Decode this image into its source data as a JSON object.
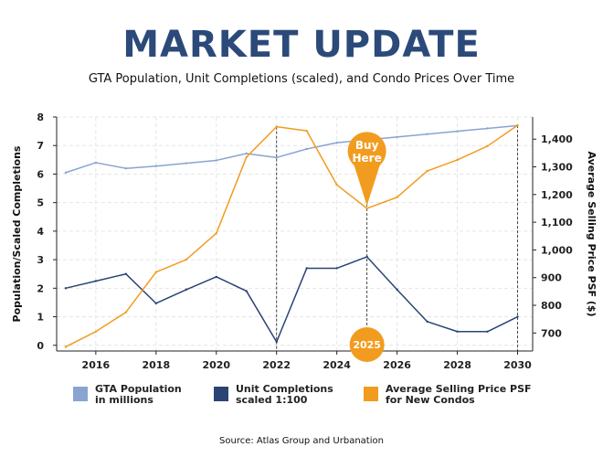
{
  "header": {
    "title": "MARKET UPDATE",
    "subtitle": "GTA Population, Unit Completions (scaled), and Condo Prices Over Time"
  },
  "source": "Source: Atlas Group and Urbanation",
  "colors": {
    "population": "#8aa4d1",
    "completions": "#2b4474",
    "price": "#f29c1f",
    "title": "#2b4a7a",
    "grid": "#e5e5e5",
    "annotation": "#333333"
  },
  "legend": [
    {
      "key": "population",
      "line1": "GTA Population",
      "line2": "in millions"
    },
    {
      "key": "completions",
      "line1": "Unit Completions",
      "line2": "scaled 1:100"
    },
    {
      "key": "price",
      "line1": "Average Selling Price PSF",
      "line2": "for New Condos"
    }
  ],
  "chart_data": {
    "type": "line",
    "x": [
      2015,
      2016,
      2017,
      2018,
      2019,
      2020,
      2021,
      2022,
      2023,
      2024,
      2025,
      2026,
      2027,
      2028,
      2029,
      2030
    ],
    "xlim": [
      2014.7,
      2030.5
    ],
    "xticks": [
      2016,
      2018,
      2020,
      2022,
      2024,
      2026,
      2028,
      2030
    ],
    "ylabel": "Population/Scaled Completions",
    "ylim": [
      -0.2,
      8
    ],
    "yticks": [
      0,
      1,
      2,
      3,
      4,
      5,
      6,
      7,
      8
    ],
    "y2label": "Average Selling Price PSF ($)",
    "y2lim": [
      635,
      1480
    ],
    "y2ticks": [
      700,
      800,
      900,
      1000,
      1100,
      1200,
      1300,
      1400
    ],
    "y2ticklabels": [
      "700",
      "800",
      "900",
      "1,000",
      "1,100",
      "1,200",
      "1,300",
      "1,400"
    ],
    "grid": true,
    "legend": "bottom",
    "series": [
      {
        "key": "population",
        "axis": "left",
        "values": [
          6.05,
          6.4,
          6.2,
          6.28,
          6.38,
          6.48,
          6.72,
          6.58,
          6.88,
          7.1,
          7.2,
          7.3,
          7.4,
          7.5,
          7.6,
          7.7
        ]
      },
      {
        "key": "completions",
        "axis": "left",
        "values": [
          2.0,
          2.25,
          2.5,
          1.47,
          1.95,
          2.4,
          1.9,
          0.12,
          2.7,
          2.7,
          3.1,
          1.95,
          0.83,
          0.48,
          0.48,
          1.0
        ]
      },
      {
        "key": "price",
        "axis": "right",
        "values": [
          650,
          705,
          775,
          920,
          965,
          1060,
          1335,
          1445,
          1430,
          1235,
          1150,
          1190,
          1285,
          1325,
          1375,
          1450
        ]
      }
    ],
    "vlines": [
      2022,
      2025,
      2030
    ],
    "annotations": [
      {
        "label_line1": "Buy",
        "label_line2": "Here",
        "x": 2025,
        "y2": 1150,
        "type": "pin"
      },
      {
        "label": "2025",
        "x": 2025,
        "type": "badge"
      }
    ]
  }
}
